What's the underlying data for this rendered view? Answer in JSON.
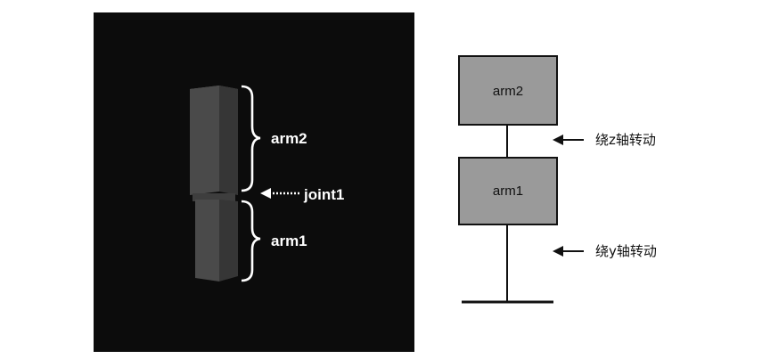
{
  "scene": {
    "label_arm2": "arm2",
    "label_joint": "joint1",
    "label_arm1": "arm1",
    "colors": {
      "background": "#0c0c0c",
      "arm_front": "#4a4a4a",
      "arm_side": "#363636",
      "arm_top": "#6e6e6e",
      "bracket": "#ffffff"
    }
  },
  "hierarchy": {
    "box_top_label": "arm2",
    "box_bottom_label": "arm1",
    "note_top": "绕z轴转动",
    "note_bottom": "绕y轴转动",
    "colors": {
      "box_fill": "#9a9a9a",
      "line": "#111111"
    }
  }
}
